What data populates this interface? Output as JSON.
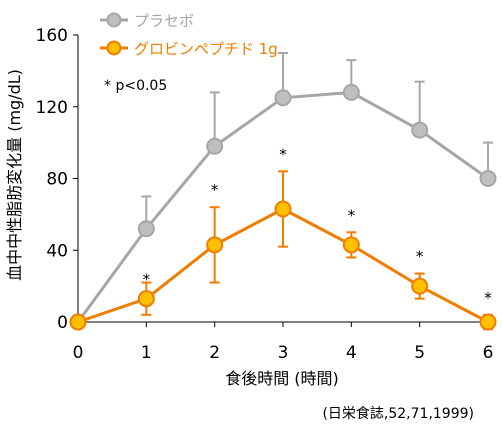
{
  "chart_data": {
    "type": "line",
    "x": [
      0,
      1,
      2,
      3,
      4,
      5,
      6
    ],
    "xlabel": "食後時間 (時間)",
    "ylabel": "血中中性脂肪変化量 (mg/dL)",
    "xlim": [
      0,
      6
    ],
    "ylim": [
      0,
      160
    ],
    "yticks": [
      0,
      40,
      80,
      120,
      160
    ],
    "xticks": [
      0,
      1,
      2,
      3,
      4,
      5,
      6
    ],
    "grid": false,
    "legend_position": "top-left",
    "series": [
      {
        "name": "プラセボ",
        "color": "#a6a6a6",
        "values": [
          0,
          52,
          98,
          125,
          128,
          107,
          80
        ],
        "error": [
          0,
          18,
          30,
          25,
          18,
          27,
          20
        ]
      },
      {
        "name": "グロビンペプチド 1g",
        "color": "#f07c00",
        "values": [
          0,
          13,
          43,
          63,
          43,
          20,
          0
        ],
        "error": [
          0,
          9,
          21,
          21,
          7,
          7,
          4
        ]
      }
    ],
    "significance_marks": [
      {
        "x": 1,
        "label": "*"
      },
      {
        "x": 2,
        "label": "*"
      },
      {
        "x": 3,
        "label": "*"
      },
      {
        "x": 4,
        "label": "*"
      },
      {
        "x": 5,
        "label": "*"
      },
      {
        "x": 6,
        "label": "*"
      }
    ],
    "annotation": "* p<0.05",
    "citation": "(日栄食誌,52,71,1999)"
  }
}
